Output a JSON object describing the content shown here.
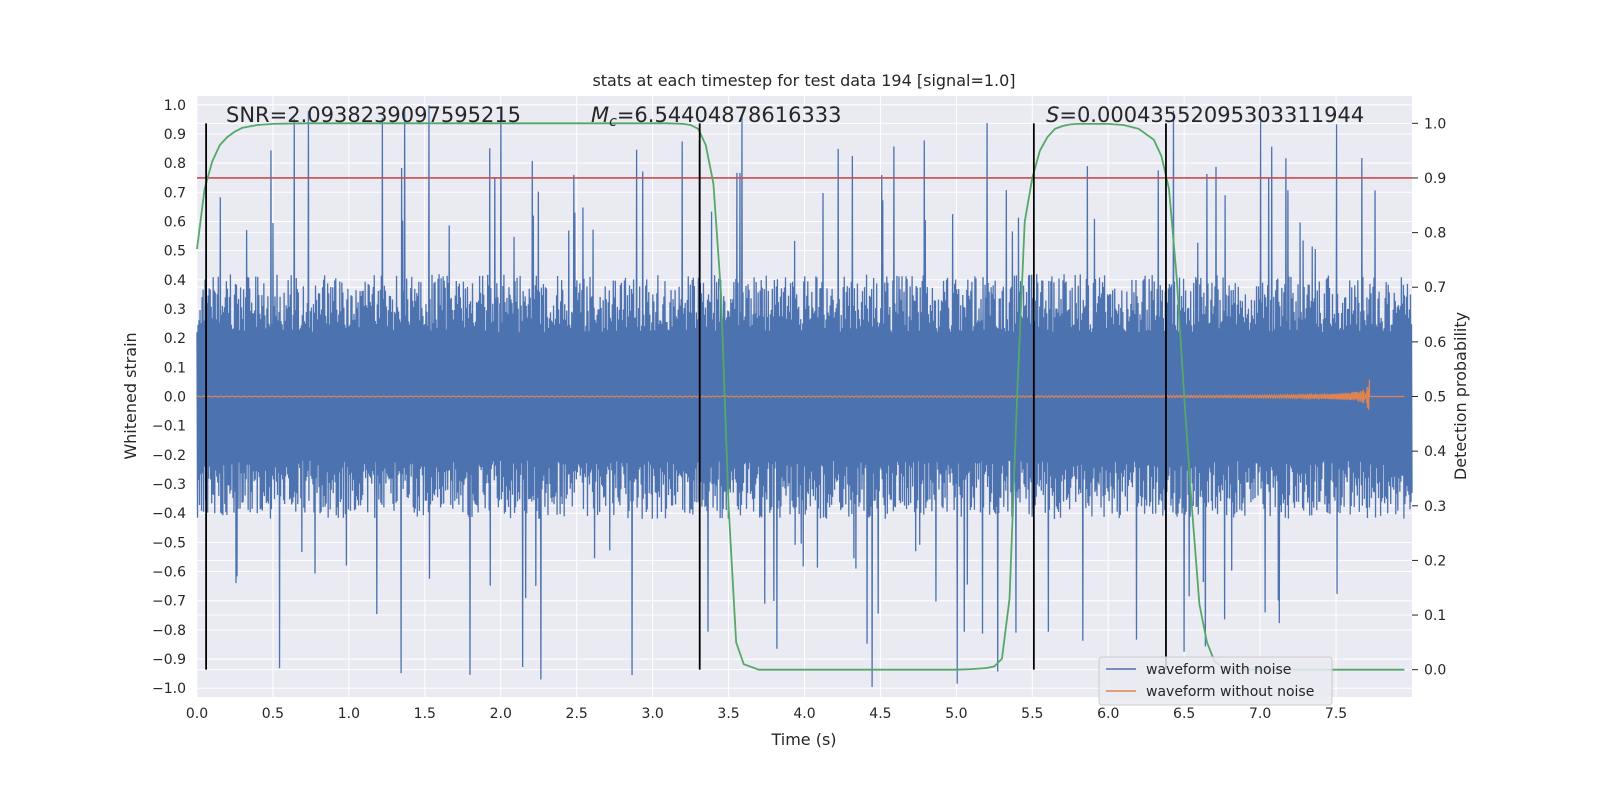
{
  "chart_data": {
    "type": "line",
    "title": "stats at each timestep for test data 194 [signal=1.0]",
    "xlabel": "Time (s)",
    "ylabel": "Whitened strain",
    "y2label": "Detection probability",
    "xlim": [
      0.0,
      8.0
    ],
    "ylim": [
      -1.03,
      1.03
    ],
    "y2lim": [
      -0.05,
      1.05
    ],
    "xticks": [
      "0.0",
      "0.5",
      "1.0",
      "1.5",
      "2.0",
      "2.5",
      "3.0",
      "3.5",
      "4.0",
      "4.5",
      "5.0",
      "5.5",
      "6.0",
      "6.5",
      "7.0",
      "7.5"
    ],
    "yticks": [
      "1.0",
      "0.9",
      "0.8",
      "0.7",
      "0.6",
      "0.5",
      "0.4",
      "0.3",
      "0.2",
      "0.1",
      "0.0",
      "−0.1",
      "−0.2",
      "−0.3",
      "−0.4",
      "−0.5",
      "−0.6",
      "−0.7",
      "−0.8",
      "−0.9",
      "−1.0"
    ],
    "y2ticks": [
      "1.0",
      "0.9",
      "0.8",
      "0.7",
      "0.6",
      "0.5",
      "0.4",
      "0.3",
      "0.2",
      "0.1",
      "0.0"
    ],
    "grid": true,
    "legend_position": "lower right",
    "annotations": {
      "snr": "SNR=2.0938239097595215",
      "mc_symbol": "M",
      "mc_sub": "c",
      "mc_value": "=6.54404878616333",
      "s_symbol": "S",
      "s_value": "=0.00043552095303311944"
    },
    "threshold_y2": 0.9,
    "vertical_lines_x": [
      0.06,
      3.31,
      5.51,
      6.38
    ],
    "series": [
      {
        "name": "waveform with noise",
        "color": "#4c72b0",
        "style": "dense noise, envelope about ±0.4 with spikes up to ±1.0"
      },
      {
        "name": "waveform without noise",
        "color": "#dd8452",
        "style": "chirp growing in amplitude, ending near x=7.72"
      },
      {
        "name": "",
        "color": "#55a868",
        "axis": "right",
        "x": [
          0.0,
          0.05,
          0.1,
          0.15,
          0.2,
          0.25,
          0.3,
          0.4,
          0.5,
          0.7,
          1.0,
          1.5,
          2.0,
          2.5,
          3.0,
          3.1,
          3.2,
          3.25,
          3.3,
          3.35,
          3.4,
          3.45,
          3.5,
          3.55,
          3.6,
          3.7,
          4.0,
          4.5,
          5.0,
          5.1,
          5.2,
          5.25,
          5.3,
          5.35,
          5.4,
          5.45,
          5.5,
          5.55,
          5.6,
          5.65,
          5.7,
          5.75,
          5.8,
          6.0,
          6.1,
          6.2,
          6.3,
          6.35,
          6.4,
          6.45,
          6.5,
          6.55,
          6.6,
          6.65,
          6.7,
          6.75,
          6.8,
          6.9,
          7.0,
          7.5,
          7.95
        ],
        "values": [
          0.77,
          0.88,
          0.93,
          0.96,
          0.975,
          0.985,
          0.992,
          0.997,
          0.999,
          1.0,
          1.0,
          1.0,
          1.0,
          1.0,
          1.0,
          1.0,
          0.999,
          0.997,
          0.99,
          0.96,
          0.89,
          0.69,
          0.3,
          0.05,
          0.01,
          0.0,
          0.0,
          0.0,
          0.0,
          0.001,
          0.003,
          0.006,
          0.02,
          0.13,
          0.5,
          0.82,
          0.9,
          0.95,
          0.975,
          0.99,
          0.995,
          0.998,
          0.999,
          0.999,
          0.997,
          0.99,
          0.97,
          0.94,
          0.88,
          0.72,
          0.5,
          0.3,
          0.12,
          0.05,
          0.015,
          0.005,
          0.0,
          0.0,
          0.0,
          0.0,
          0.0
        ]
      }
    ],
    "colors": {
      "background": "#eaeaf2",
      "grid": "#ffffff",
      "threshold": "#c44e52",
      "vlines": "#000000"
    }
  }
}
